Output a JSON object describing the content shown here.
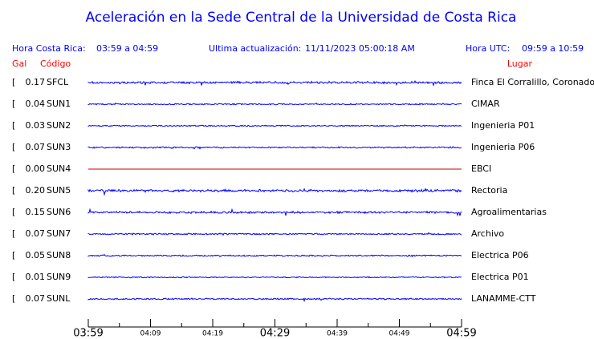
{
  "header": {
    "title": "Aceleración en la Sede Central de la Universidad de Costa Rica",
    "local_label": "Hora Costa Rica:",
    "local_range": "03:59 a 04:59",
    "update_label": "Ultima actualización:",
    "update_time": "11/11/2023 05:00:18 AM",
    "utc_label": "Hora UTC:",
    "utc_range": "09:59 a 10:59"
  },
  "columns": {
    "gal": "Gal",
    "code": "Código",
    "place": "Lugar",
    "bracket": "["
  },
  "stations": [
    {
      "gal": "0.17",
      "code": "SFCL",
      "place": "Finca El Corralillo, Coronado",
      "color": "#0000ff"
    },
    {
      "gal": "0.04",
      "code": "SUN1",
      "place": "CIMAR",
      "color": "#0000ff"
    },
    {
      "gal": "0.03",
      "code": "SUN2",
      "place": "Ingenieria P01",
      "color": "#0000ff"
    },
    {
      "gal": "0.07",
      "code": "SUN3",
      "place": "Ingenieria P06",
      "color": "#0000ff"
    },
    {
      "gal": "0.00",
      "code": "SUN4",
      "place": "EBCI",
      "color": "#cc0000"
    },
    {
      "gal": "0.20",
      "code": "SUN5",
      "place": "Rectoria",
      "color": "#0000ff"
    },
    {
      "gal": "0.15",
      "code": "SUN6",
      "place": "Agroalimentarias",
      "color": "#0000ff"
    },
    {
      "gal": "0.07",
      "code": "SUN7",
      "place": "Archivo",
      "color": "#0000ff"
    },
    {
      "gal": "0.05",
      "code": "SUN8",
      "place": "Electrica P06",
      "color": "#0000ff"
    },
    {
      "gal": "0.01",
      "code": "SUN9",
      "place": "Electrica P01",
      "color": "#0000ff"
    },
    {
      "gal": "0.07",
      "code": "SUNL",
      "place": "LANAMME-CTT",
      "color": "#0000ff"
    }
  ],
  "time_axis": {
    "labels": [
      "03:59",
      "04:09",
      "04:19",
      "04:29",
      "04:39",
      "04:49",
      "04:59"
    ]
  }
}
